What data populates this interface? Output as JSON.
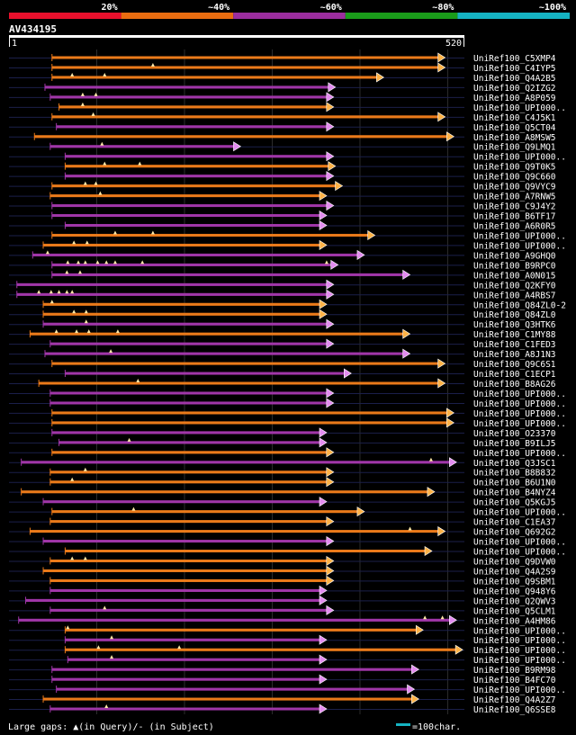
{
  "chart_data": {
    "type": "alignment-coverage",
    "query_id": "AV434195",
    "query_length": 520,
    "axis": {
      "start_label": "1",
      "end_label": "520"
    },
    "identity_legend": [
      {
        "label": "20%",
        "color": "#e8102c"
      },
      {
        "label": "~40%",
        "color": "#ea6d10"
      },
      {
        "label": "~60%",
        "color": "#9b2d9e"
      },
      {
        "label": "~80%",
        "color": "#1a9c1a"
      },
      {
        "label": "~100%",
        "color": "#15b3c2"
      }
    ],
    "hits": [
      {
        "label": "UniRef100_C5XMP4",
        "start": 50,
        "end": 495,
        "color": "orange",
        "gaps": []
      },
      {
        "label": "UniRef100_C4IYP5",
        "start": 50,
        "end": 495,
        "color": "orange",
        "gaps": [
          165
        ]
      },
      {
        "label": "UniRef100_Q4A2B5",
        "start": 50,
        "end": 425,
        "color": "orange",
        "gaps": [
          73,
          110
        ]
      },
      {
        "label": "UniRef100_Q2IZG2",
        "start": 42,
        "end": 370,
        "color": "purple",
        "gaps": []
      },
      {
        "label": "UniRef100_A8P059",
        "start": 48,
        "end": 368,
        "color": "purple",
        "gaps": [
          85,
          100
        ]
      },
      {
        "label": "UniRef100_UPI000..",
        "start": 58,
        "end": 368,
        "color": "orange",
        "gaps": [
          85
        ]
      },
      {
        "label": "UniRef100_C4J5K1",
        "start": 50,
        "end": 495,
        "color": "orange",
        "gaps": [
          97
        ]
      },
      {
        "label": "UniRef100_Q5CT04",
        "start": 55,
        "end": 368,
        "color": "purple",
        "gaps": []
      },
      {
        "label": "UniRef100_A8MSW5",
        "start": 30,
        "end": 505,
        "color": "orange",
        "gaps": []
      },
      {
        "label": "UniRef100_Q9LMQ1",
        "start": 48,
        "end": 262,
        "color": "purple",
        "gaps": [
          107
        ]
      },
      {
        "label": "UniRef100_UPI000..",
        "start": 65,
        "end": 368,
        "color": "purple",
        "gaps": []
      },
      {
        "label": "UniRef100_Q9T0K5",
        "start": 65,
        "end": 370,
        "color": "orange",
        "gaps": [
          110,
          150
        ]
      },
      {
        "label": "UniRef100_Q9C660",
        "start": 65,
        "end": 368,
        "color": "purple",
        "gaps": []
      },
      {
        "label": "UniRef100_Q9VYC9",
        "start": 50,
        "end": 378,
        "color": "orange",
        "gaps": [
          88,
          100
        ]
      },
      {
        "label": "UniRef100_A7RNW5",
        "start": 48,
        "end": 360,
        "color": "orange",
        "gaps": [
          105
        ]
      },
      {
        "label": "UniRef100_C9J4Y2",
        "start": 50,
        "end": 368,
        "color": "purple",
        "gaps": []
      },
      {
        "label": "UniRef100_B6TF17",
        "start": 50,
        "end": 360,
        "color": "purple",
        "gaps": []
      },
      {
        "label": "UniRef100_A6R0R5",
        "start": 65,
        "end": 360,
        "color": "purple",
        "gaps": []
      },
      {
        "label": "UniRef100_UPI000..",
        "start": 50,
        "end": 415,
        "color": "orange",
        "gaps": [
          122,
          165
        ]
      },
      {
        "label": "UniRef100_UPI000..",
        "start": 40,
        "end": 360,
        "color": "orange",
        "gaps": [
          75,
          90
        ]
      },
      {
        "label": "UniRef100_A9GHQ0",
        "start": 28,
        "end": 403,
        "color": "purple",
        "gaps": [
          45
        ]
      },
      {
        "label": "UniRef100_B9RPC0",
        "start": 50,
        "end": 373,
        "color": "purple",
        "gaps": [
          68,
          80,
          88,
          102,
          112,
          122,
          153,
          363
        ]
      },
      {
        "label": "UniRef100_A0N015",
        "start": 50,
        "end": 455,
        "color": "purple",
        "gaps": [
          67,
          82
        ]
      },
      {
        "label": "UniRef100_Q2KFY0",
        "start": 10,
        "end": 368,
        "color": "purple",
        "gaps": []
      },
      {
        "label": "UniRef100_A4RBS7",
        "start": 10,
        "end": 368,
        "color": "purple",
        "gaps": [
          35,
          49,
          58,
          67,
          73
        ]
      },
      {
        "label": "UniRef100_Q84ZL0-2",
        "start": 40,
        "end": 360,
        "color": "orange",
        "gaps": [
          50
        ]
      },
      {
        "label": "UniRef100_Q84ZL0",
        "start": 40,
        "end": 360,
        "color": "orange",
        "gaps": [
          75,
          89
        ]
      },
      {
        "label": "UniRef100_Q3HTK6",
        "start": 40,
        "end": 368,
        "color": "purple",
        "gaps": [
          89
        ]
      },
      {
        "label": "UniRef100_C1MY88",
        "start": 25,
        "end": 455,
        "color": "orange",
        "gaps": [
          55,
          78,
          92,
          125
        ]
      },
      {
        "label": "UniRef100_C1FED3",
        "start": 48,
        "end": 368,
        "color": "purple",
        "gaps": []
      },
      {
        "label": "UniRef100_A8J1N3",
        "start": 42,
        "end": 455,
        "color": "purple",
        "gaps": [
          117
        ]
      },
      {
        "label": "UniRef100_Q9C6S1",
        "start": 50,
        "end": 495,
        "color": "orange",
        "gaps": []
      },
      {
        "label": "UniRef100_C1ECP1",
        "start": 65,
        "end": 388,
        "color": "purple",
        "gaps": []
      },
      {
        "label": "UniRef100_B8AG26",
        "start": 35,
        "end": 495,
        "color": "orange",
        "gaps": [
          148
        ]
      },
      {
        "label": "UniRef100_UPI000..",
        "start": 48,
        "end": 368,
        "color": "purple",
        "gaps": []
      },
      {
        "label": "UniRef100_UPI000..",
        "start": 48,
        "end": 368,
        "color": "purple",
        "gaps": []
      },
      {
        "label": "UniRef100_UPI000..",
        "start": 50,
        "end": 505,
        "color": "orange",
        "gaps": []
      },
      {
        "label": "UniRef100_UPI000..",
        "start": 50,
        "end": 505,
        "color": "orange",
        "gaps": []
      },
      {
        "label": "UniRef100_O23370",
        "start": 50,
        "end": 360,
        "color": "purple",
        "gaps": []
      },
      {
        "label": "UniRef100_B9ILJ5",
        "start": 58,
        "end": 360,
        "color": "purple",
        "gaps": [
          138
        ]
      },
      {
        "label": "UniRef100_UPI000..",
        "start": 50,
        "end": 368,
        "color": "orange",
        "gaps": []
      },
      {
        "label": "UniRef100_Q3JSC1",
        "start": 15,
        "end": 508,
        "color": "purple",
        "gaps": [
          482
        ]
      },
      {
        "label": "UniRef100_B8B832",
        "start": 48,
        "end": 368,
        "color": "orange",
        "gaps": [
          88
        ]
      },
      {
        "label": "UniRef100_B6U1N0",
        "start": 48,
        "end": 368,
        "color": "orange",
        "gaps": [
          73
        ]
      },
      {
        "label": "UniRef100_B4NYZ4",
        "start": 15,
        "end": 483,
        "color": "orange",
        "gaps": []
      },
      {
        "label": "UniRef100_Q5KGJ5",
        "start": 40,
        "end": 360,
        "color": "purple",
        "gaps": []
      },
      {
        "label": "UniRef100_UPI000..",
        "start": 50,
        "end": 403,
        "color": "orange",
        "gaps": [
          143
        ]
      },
      {
        "label": "UniRef100_C1EA37",
        "start": 48,
        "end": 368,
        "color": "orange",
        "gaps": []
      },
      {
        "label": "UniRef100_Q692G2",
        "start": 25,
        "end": 495,
        "color": "orange",
        "gaps": [
          458
        ]
      },
      {
        "label": "UniRef100_UPI000..",
        "start": 40,
        "end": 368,
        "color": "purple",
        "gaps": []
      },
      {
        "label": "UniRef100_UPI000..",
        "start": 65,
        "end": 480,
        "color": "orange",
        "gaps": []
      },
      {
        "label": "UniRef100_Q9DVW0",
        "start": 48,
        "end": 368,
        "color": "orange",
        "gaps": [
          73,
          88
        ]
      },
      {
        "label": "UniRef100_Q4A2S9",
        "start": 40,
        "end": 368,
        "color": "orange",
        "gaps": []
      },
      {
        "label": "UniRef100_Q9SBM1",
        "start": 48,
        "end": 368,
        "color": "orange",
        "gaps": []
      },
      {
        "label": "UniRef100_Q948Y6",
        "start": 48,
        "end": 360,
        "color": "purple",
        "gaps": []
      },
      {
        "label": "UniRef100_Q2QWV3",
        "start": 20,
        "end": 360,
        "color": "purple",
        "gaps": []
      },
      {
        "label": "UniRef100_Q5CLM1",
        "start": 48,
        "end": 368,
        "color": "purple",
        "gaps": [
          110
        ]
      },
      {
        "label": "UniRef100_A4HM86",
        "start": 12,
        "end": 508,
        "color": "purple",
        "gaps": [
          475,
          495
        ]
      },
      {
        "label": "UniRef100_UPI000..",
        "start": 65,
        "end": 470,
        "color": "orange",
        "gaps": [
          68
        ]
      },
      {
        "label": "UniRef100_UPI000..",
        "start": 65,
        "end": 360,
        "color": "purple",
        "gaps": [
          118
        ]
      },
      {
        "label": "UniRef100_UPI000..",
        "start": 65,
        "end": 515,
        "color": "orange",
        "gaps": [
          103,
          195
        ]
      },
      {
        "label": "UniRef100_UPI000..",
        "start": 68,
        "end": 360,
        "color": "purple",
        "gaps": [
          118
        ]
      },
      {
        "label": "UniRef100_B9RM98",
        "start": 50,
        "end": 465,
        "color": "purple",
        "gaps": []
      },
      {
        "label": "UniRef100_B4FC70",
        "start": 50,
        "end": 360,
        "color": "purple",
        "gaps": []
      },
      {
        "label": "UniRef100_UPI000..",
        "start": 55,
        "end": 460,
        "color": "purple",
        "gaps": []
      },
      {
        "label": "UniRef100_Q4A2Z7",
        "start": 40,
        "end": 465,
        "color": "orange",
        "gaps": []
      },
      {
        "label": "UniRef100_Q6SSE8",
        "start": 48,
        "end": 360,
        "color": "purple",
        "gaps": [
          112
        ]
      }
    ],
    "footer": {
      "gaps_label": "Large gaps: ▲(in Query)/- (in Subject)",
      "scale_label": "=100char.",
      "scale_color": "#15b3c2"
    }
  }
}
